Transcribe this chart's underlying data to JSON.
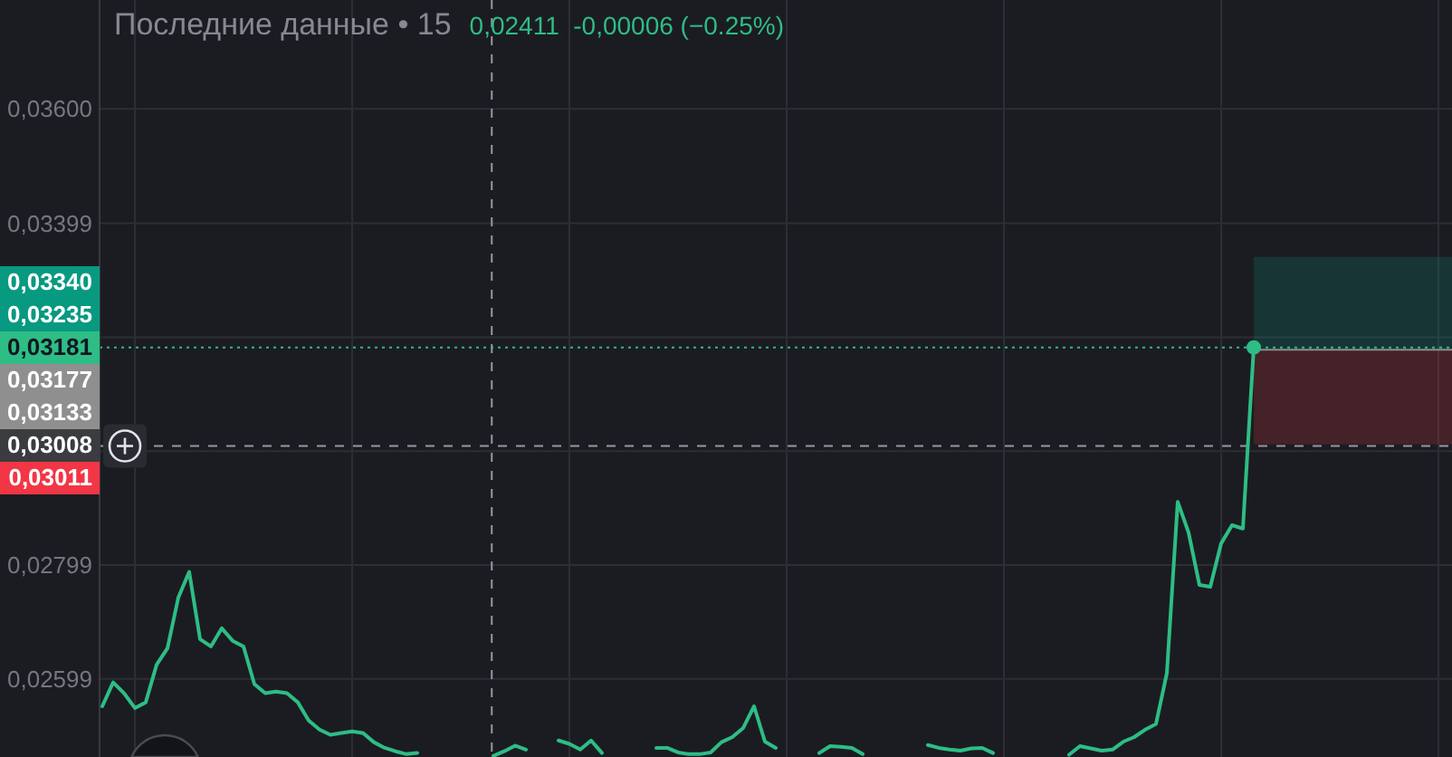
{
  "chart_data": {
    "type": "line",
    "title": "Последние данные • 15",
    "subtitle": "0,02411  -0,00006 (−0.25%)",
    "annotations": [
      "0,03340",
      "0,03235",
      "0,03177",
      "0,03133",
      "0,03011"
    ],
    "categories": [
      null,
      null,
      null,
      null,
      null,
      null,
      null,
      null,
      null,
      null,
      null,
      null,
      null,
      null,
      null,
      null,
      null,
      null,
      null,
      null,
      null,
      null,
      null,
      null,
      null,
      null,
      null,
      null,
      null,
      null,
      null,
      null,
      null,
      null,
      null,
      null,
      null,
      null,
      null,
      null,
      null,
      null,
      null,
      null,
      null,
      null,
      null,
      null,
      null,
      null,
      null,
      null,
      null,
      null,
      null,
      null,
      null,
      null,
      null,
      null,
      null,
      null,
      null,
      null,
      null,
      null,
      null,
      null,
      null,
      null,
      null,
      null,
      null,
      null,
      null,
      null,
      null,
      null,
      null,
      null,
      null,
      null,
      null,
      null,
      null,
      null,
      null,
      null,
      null,
      null,
      null,
      null,
      null,
      null,
      null,
      null,
      null,
      null,
      null,
      null,
      null,
      null,
      null,
      null,
      null,
      null,
      null,
      null,
      null,
      null,
      null,
      null,
      null,
      null,
      null,
      null,
      null,
      null,
      null,
      null,
      null,
      null,
      null,
      null,
      null
    ],
    "series": [
      {
        "color": "#2ebd85",
        "values": [
          0.02551,
          0.02593,
          0.02574,
          0.02548,
          0.02558,
          0.02624,
          0.02653,
          0.02742,
          0.02787,
          0.02669,
          0.02656,
          0.02688,
          0.02666,
          0.02656,
          0.0259,
          0.02574,
          0.02577,
          0.02574,
          0.02558,
          0.02526,
          0.0251,
          0.02501,
          0.02504,
          0.02507,
          0.02504,
          0.02488,
          0.02478,
          0.02472,
          0.02467,
          0.02469,
          null,
          null,
          null,
          null,
          null,
          null,
          0.02464,
          0.02472,
          0.02482,
          0.02475,
          null,
          null,
          0.02491,
          0.02485,
          0.02475,
          0.02491,
          0.02469,
          null,
          null,
          null,
          null,
          0.02478,
          0.02478,
          0.0247,
          0.02467,
          0.02467,
          0.0247,
          0.02488,
          0.02497,
          0.02513,
          0.02551,
          0.02489,
          0.02478,
          null,
          null,
          null,
          0.02469,
          0.02481,
          0.0248,
          0.02478,
          0.02467,
          null,
          null,
          null,
          null,
          null,
          0.02483,
          0.02478,
          0.02475,
          0.02473,
          0.02477,
          0.02478,
          0.02469,
          null,
          null,
          null,
          null,
          null,
          null,
          0.02466,
          0.02481,
          0.02477,
          0.02473,
          0.02475,
          0.02489,
          0.02497,
          0.0251,
          0.0252,
          0.02609,
          0.0291,
          0.02856,
          0.02764,
          0.02761,
          0.02837,
          0.02869,
          0.02863,
          0.03181,
          null,
          null,
          null,
          null,
          null,
          null,
          null,
          null,
          null,
          null,
          null,
          null,
          null,
          null,
          null,
          null,
          null,
          null
        ]
      },
      {
        "type": "scatter",
        "color": "#2ebd85",
        "values": [
          null,
          null,
          null,
          null,
          null,
          null,
          null,
          null,
          null,
          null,
          null,
          null,
          null,
          null,
          null,
          null,
          null,
          null,
          null,
          null,
          null,
          null,
          null,
          null,
          null,
          null,
          null,
          null,
          null,
          null,
          null,
          null,
          null,
          null,
          null,
          null,
          null,
          null,
          null,
          null,
          null,
          null,
          null,
          null,
          null,
          null,
          null,
          null,
          null,
          null,
          null,
          null,
          null,
          null,
          null,
          null,
          null,
          null,
          null,
          null,
          null,
          null,
          null,
          null,
          null,
          null,
          null,
          null,
          null,
          null,
          null,
          null,
          null,
          null,
          null,
          null,
          null,
          null,
          null,
          null,
          null,
          null,
          null,
          null,
          null,
          null,
          null,
          null,
          null,
          null,
          null,
          null,
          null,
          null,
          null,
          null,
          null,
          null,
          null,
          null,
          null,
          null,
          null,
          null,
          null,
          null,
          0.03181,
          null,
          null,
          null,
          null,
          null,
          null,
          null,
          null,
          null,
          null,
          null,
          null,
          null,
          null,
          null,
          null,
          null,
          null
        ]
      }
    ],
    "ylim": [
      0.02462,
      0.03791
    ],
    "yticks": [
      {
        "value": 0.02599,
        "label": "0,02599"
      },
      {
        "value": 0.02799,
        "label": "0,02799"
      },
      {
        "value": 0.02999,
        "label": null
      },
      {
        "value": 0.03199,
        "label": null
      },
      {
        "value": 0.03399,
        "label": "0,03399"
      },
      {
        "value": 0.036,
        "label": "0,03600"
      }
    ],
    "grid": true,
    "ref_lines": [
      {
        "axis": "y",
        "value": 0.03181,
        "label": "0,03181",
        "color": "#2ebd85",
        "line_style": "dotted"
      },
      {
        "axis": "y",
        "value": 0.03008,
        "label": "0,03008",
        "color": "#9598a1",
        "line_style": "dashed"
      },
      {
        "axis": "y",
        "value": 0.03177,
        "color": "#8f8f8f"
      }
    ],
    "bands": [
      {
        "axis": "y",
        "from": 0.03177,
        "to": 0.0334,
        "color": "#089981"
      },
      {
        "axis": "y",
        "from": 0.03177,
        "to": 0.03011,
        "color": "#f23645"
      }
    ]
  }
}
